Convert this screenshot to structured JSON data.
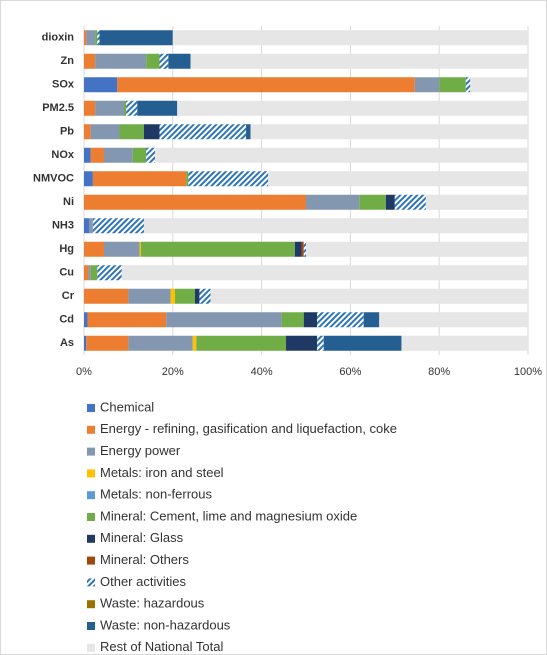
{
  "chart_data": {
    "type": "stacked_barh",
    "categories": [
      "dioxin",
      "Zn",
      "SOx",
      "PM2.5",
      "Pb",
      "NOx",
      "NMVOC",
      "Ni",
      "NH3",
      "Hg",
      "Cu",
      "Cr",
      "Cd",
      "As"
    ],
    "series": [
      {
        "name": "Chemical",
        "color": "#4472c4",
        "values": [
          0,
          0,
          7.5,
          0,
          0,
          1.5,
          2,
          0,
          1.2,
          0,
          0,
          0,
          0.8,
          0.5
        ]
      },
      {
        "name": "Energy - refining, gasification and liquefaction, coke",
        "color": "#ed7d31",
        "values": [
          0.5,
          2.5,
          67,
          2.5,
          1.5,
          3,
          21,
          50,
          0,
          4.5,
          1,
          10,
          17.7,
          9.5
        ]
      },
      {
        "name": "Energy power",
        "color": "#8497b0",
        "values": [
          2,
          11.5,
          5.5,
          6.5,
          6.5,
          6.5,
          0,
          12,
          0.8,
          8,
          0.5,
          9.5,
          26,
          14.5
        ]
      },
      {
        "name": "Metals: iron and steel",
        "color": "#ffc000",
        "values": [
          0,
          0,
          0,
          0,
          0,
          0,
          0,
          0,
          0,
          0.3,
          0,
          1,
          0,
          0.8
        ]
      },
      {
        "name": "Metals: non-ferrous",
        "color": "#5b9bd5",
        "values": [
          0,
          0,
          0,
          0,
          0,
          0,
          0,
          0,
          0,
          0,
          0,
          0,
          0,
          0
        ]
      },
      {
        "name": "Mineral: Cement, lime and magnesium oxide",
        "color": "#70ad47",
        "values": [
          0.5,
          3,
          6,
          0.5,
          5.5,
          3,
          0.5,
          6,
          0,
          34.7,
          1.5,
          4.5,
          5,
          20.2
        ]
      },
      {
        "name": "Mineral: Glass",
        "color": "#203864",
        "values": [
          0,
          0,
          0,
          0,
          3.5,
          0,
          0,
          2,
          0,
          1.5,
          0,
          1,
          3,
          7
        ]
      },
      {
        "name": "Mineral: Others",
        "color": "#9e480e",
        "values": [
          0,
          0,
          0,
          0,
          0,
          0,
          0,
          0,
          0,
          0.5,
          0,
          0,
          0,
          0
        ]
      },
      {
        "name": "Other activities",
        "color": "#2e75b6",
        "hatch": true,
        "values": [
          0.5,
          2,
          1,
          2.5,
          19.5,
          2,
          18,
          7,
          11.5,
          0.5,
          5.5,
          2.5,
          10.5,
          1.5
        ]
      },
      {
        "name": "Waste: hazardous",
        "color": "#997300",
        "values": [
          0,
          0,
          0,
          0,
          0,
          0,
          0,
          0,
          0,
          0,
          0,
          0,
          0,
          0
        ]
      },
      {
        "name": "Waste: non-hazardous",
        "color": "#255e91",
        "values": [
          16.5,
          5,
          0,
          9,
          1,
          0,
          0,
          0,
          0,
          0,
          0,
          0,
          3.5,
          17.5
        ]
      },
      {
        "name": "Rest of National Total",
        "color": "#e7e6e6",
        "values": [
          80,
          76,
          13,
          79,
          62.5,
          84,
          58.5,
          23,
          86.5,
          50,
          91.5,
          71.5,
          33.5,
          28.5
        ]
      }
    ],
    "xlim": [
      0,
      100
    ],
    "xticks": [
      {
        "value": 0,
        "label": "0%"
      },
      {
        "value": 20,
        "label": "20%"
      },
      {
        "value": 40,
        "label": "40%"
      },
      {
        "value": 60,
        "label": "60%"
      },
      {
        "value": 80,
        "label": "80%"
      },
      {
        "value": 100,
        "label": "100%"
      }
    ],
    "grid": true
  }
}
